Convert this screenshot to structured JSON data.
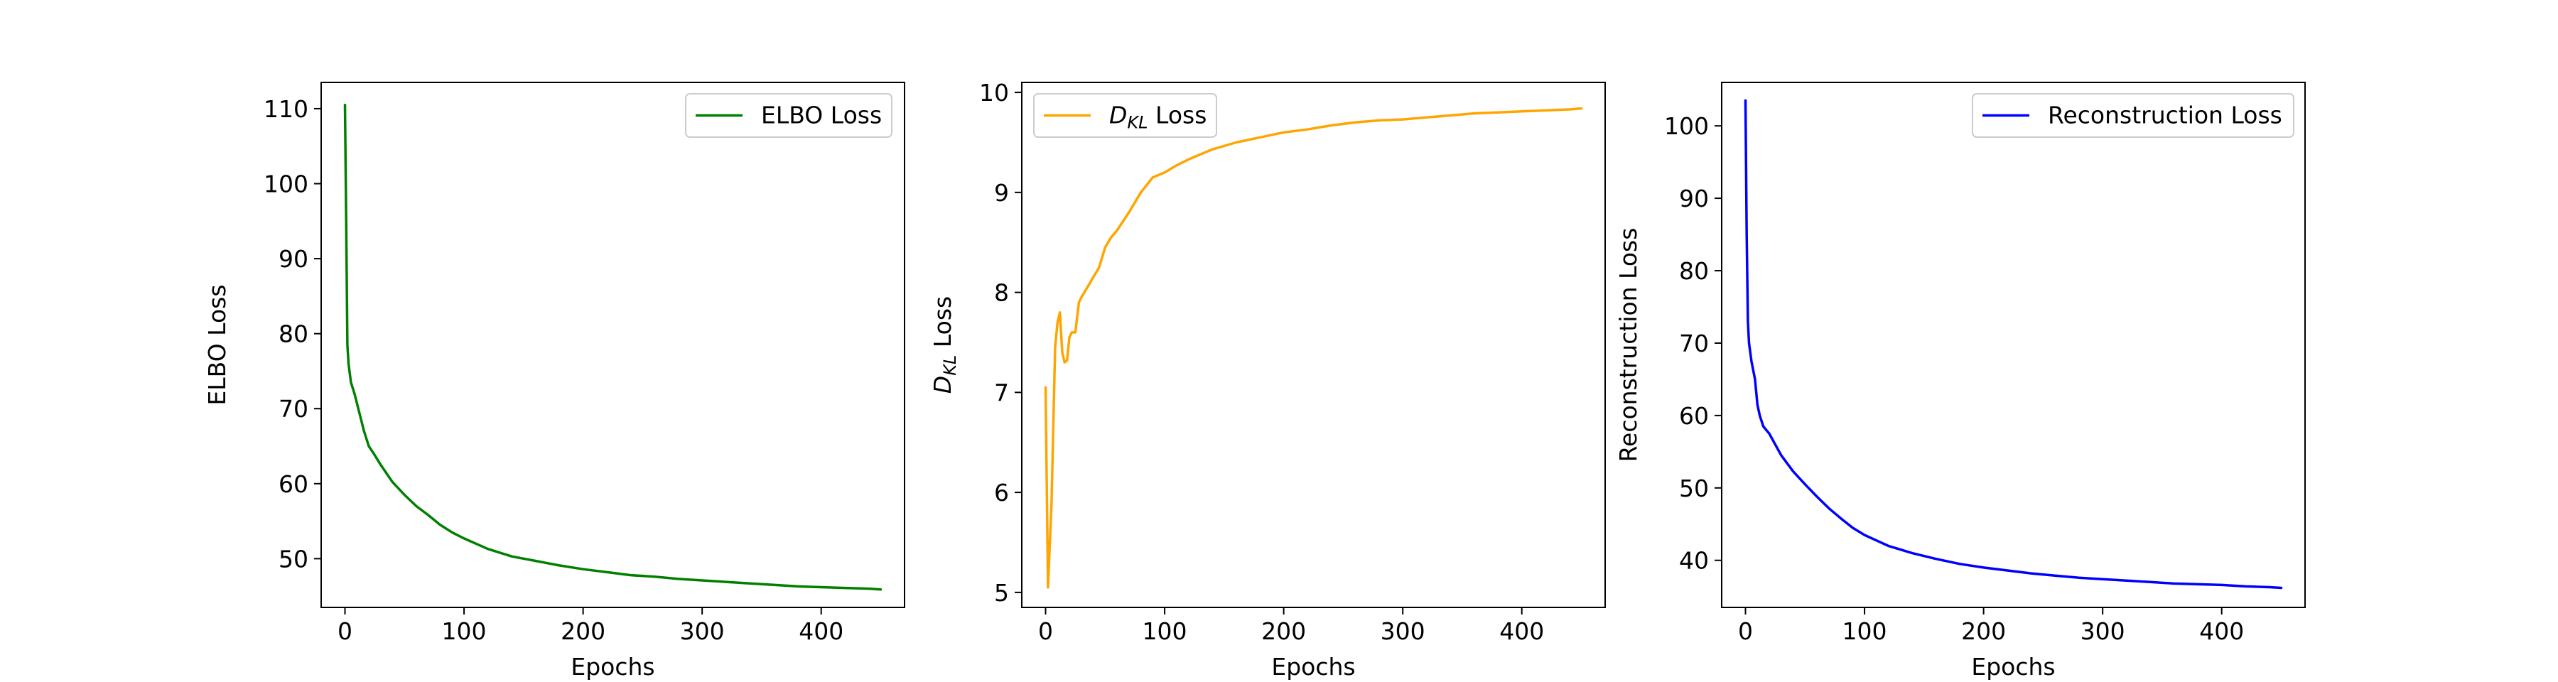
{
  "chart_data": [
    {
      "type": "line",
      "xlabel": "Epochs",
      "ylabel": "ELBO Loss",
      "xlim": [
        -20,
        470
      ],
      "ylim": [
        43.5,
        113.5
      ],
      "xticks": [
        "0",
        "100",
        "200",
        "300",
        "400"
      ],
      "yticks": [
        "50",
        "60",
        "70",
        "80",
        "90",
        "100",
        "110"
      ],
      "legend_position": "top-right",
      "series": [
        {
          "name": "ELBO Loss",
          "color": "#008000",
          "x": [
            0,
            1,
            2,
            3,
            5,
            8,
            12,
            16,
            20,
            25,
            30,
            40,
            50,
            60,
            70,
            80,
            90,
            100,
            120,
            140,
            160,
            180,
            200,
            220,
            240,
            260,
            280,
            300,
            320,
            340,
            360,
            380,
            400,
            420,
            440,
            450
          ],
          "y": [
            110.5,
            95.0,
            78.5,
            76.0,
            73.5,
            72.0,
            69.5,
            67.0,
            65.0,
            63.8,
            62.5,
            60.2,
            58.5,
            57.0,
            55.8,
            54.5,
            53.5,
            52.7,
            51.3,
            50.3,
            49.7,
            49.1,
            48.6,
            48.2,
            47.8,
            47.6,
            47.3,
            47.1,
            46.9,
            46.7,
            46.5,
            46.3,
            46.2,
            46.1,
            46.0,
            45.9
          ]
        }
      ]
    },
    {
      "type": "line",
      "xlabel": "Epochs",
      "ylabel": "D_KL Loss",
      "xlim": [
        -20,
        470
      ],
      "ylim": [
        4.85,
        10.1
      ],
      "xticks": [
        "0",
        "100",
        "200",
        "300",
        "400"
      ],
      "yticks": [
        "5",
        "6",
        "7",
        "8",
        "9",
        "10"
      ],
      "legend_position": "top-left",
      "series": [
        {
          "name": "D_KL Loss",
          "color": "#FFA500",
          "x": [
            0,
            2,
            5,
            8,
            10,
            12,
            14,
            16,
            18,
            20,
            22,
            25,
            28,
            30,
            35,
            40,
            45,
            50,
            55,
            60,
            70,
            80,
            90,
            100,
            110,
            120,
            140,
            160,
            180,
            200,
            220,
            240,
            260,
            280,
            300,
            320,
            340,
            360,
            380,
            400,
            420,
            440,
            450
          ],
          "y": [
            7.05,
            5.05,
            5.9,
            7.45,
            7.7,
            7.8,
            7.4,
            7.3,
            7.32,
            7.55,
            7.6,
            7.6,
            7.9,
            7.95,
            8.05,
            8.15,
            8.25,
            8.45,
            8.55,
            8.62,
            8.8,
            9.0,
            9.15,
            9.2,
            9.27,
            9.33,
            9.43,
            9.5,
            9.55,
            9.6,
            9.63,
            9.67,
            9.7,
            9.72,
            9.73,
            9.75,
            9.77,
            9.79,
            9.8,
            9.81,
            9.82,
            9.83,
            9.84
          ]
        }
      ]
    },
    {
      "type": "line",
      "xlabel": "Epochs",
      "ylabel": "Reconstruction Loss",
      "xlim": [
        -20,
        470
      ],
      "ylim": [
        33.5,
        106.0
      ],
      "xticks": [
        "0",
        "100",
        "200",
        "300",
        "400"
      ],
      "yticks": [
        "40",
        "50",
        "60",
        "70",
        "80",
        "90",
        "100"
      ],
      "legend_position": "top-right",
      "series": [
        {
          "name": "Reconstruction Loss",
          "color": "#0000FF",
          "x": [
            0,
            1,
            2,
            3,
            5,
            8,
            10,
            12,
            15,
            20,
            25,
            30,
            40,
            50,
            60,
            70,
            80,
            90,
            100,
            120,
            140,
            160,
            180,
            200,
            220,
            240,
            260,
            280,
            300,
            320,
            340,
            360,
            380,
            400,
            420,
            440,
            450
          ],
          "y": [
            103.5,
            85.0,
            73.0,
            70.0,
            67.5,
            65.0,
            61.5,
            60.0,
            58.5,
            57.5,
            56.0,
            54.5,
            52.3,
            50.5,
            48.8,
            47.2,
            45.8,
            44.5,
            43.5,
            42.0,
            41.0,
            40.2,
            39.5,
            39.0,
            38.6,
            38.2,
            37.9,
            37.6,
            37.4,
            37.2,
            37.0,
            36.8,
            36.7,
            36.6,
            36.4,
            36.3,
            36.2
          ]
        }
      ]
    }
  ]
}
